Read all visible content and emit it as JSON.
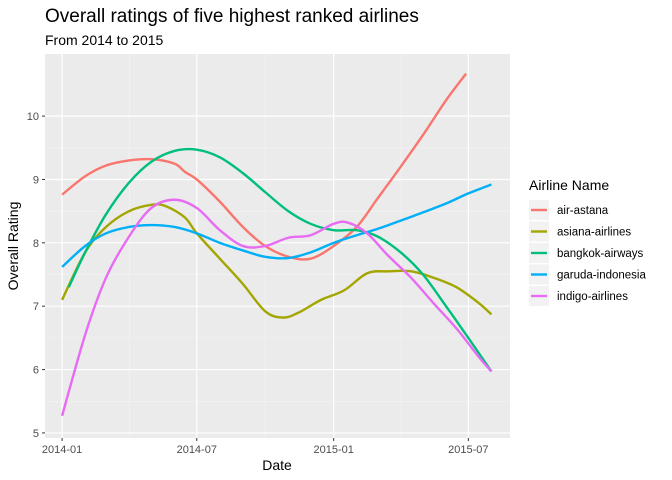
{
  "chart_data": {
    "type": "line",
    "title": "Overall ratings of five highest ranked airlines",
    "subtitle": "From 2014 to 2015",
    "xlabel": "Date",
    "ylabel": "Overall Rating",
    "x_ticks": [
      "2014-01",
      "2014-07",
      "2015-01",
      "2015-07"
    ],
    "y_ticks": [
      5,
      6,
      7,
      8,
      9,
      10
    ],
    "xlim": [
      "2013-12-09",
      "2015-08-26"
    ],
    "ylim": [
      4.92,
      10.98
    ],
    "grid": true,
    "legend_position": "right",
    "legend_title": "Airline Name",
    "series": [
      {
        "name": "air-astana",
        "color": "#F8766D",
        "x": [
          "2014-01-01",
          "2014-02-01",
          "2014-03-01",
          "2014-04-01",
          "2014-05-01",
          "2014-06-01",
          "2014-06-15",
          "2014-07-01",
          "2014-08-01",
          "2014-09-01",
          "2014-10-01",
          "2014-11-01",
          "2014-12-01",
          "2015-01-01",
          "2015-02-01",
          "2015-03-01",
          "2015-04-01",
          "2015-05-01",
          "2015-06-01",
          "2015-06-28"
        ],
        "y": [
          8.76,
          9.05,
          9.22,
          9.3,
          9.32,
          9.25,
          9.12,
          9.0,
          8.65,
          8.25,
          7.95,
          7.78,
          7.75,
          7.95,
          8.25,
          8.7,
          9.2,
          9.7,
          10.25,
          10.67
        ]
      },
      {
        "name": "asiana-airlines",
        "color": "#A3A500",
        "x": [
          "2014-01-01",
          "2014-02-01",
          "2014-03-01",
          "2014-04-01",
          "2014-05-01",
          "2014-05-20",
          "2014-06-15",
          "2014-07-01",
          "2014-08-01",
          "2014-09-01",
          "2014-10-01",
          "2014-10-25",
          "2014-11-15",
          "2014-12-15",
          "2015-01-15",
          "2015-02-15",
          "2015-03-15",
          "2015-04-15",
          "2015-05-15",
          "2015-06-15",
          "2015-07-15",
          "2015-08-01"
        ],
        "y": [
          7.1,
          7.85,
          8.25,
          8.5,
          8.6,
          8.58,
          8.4,
          8.15,
          7.75,
          7.35,
          6.92,
          6.82,
          6.9,
          7.1,
          7.25,
          7.52,
          7.55,
          7.55,
          7.45,
          7.3,
          7.05,
          6.87
        ]
      },
      {
        "name": "bangkok-airways",
        "color": "#00BF7D",
        "x": [
          "2014-01-10",
          "2014-02-01",
          "2014-03-01",
          "2014-04-01",
          "2014-05-01",
          "2014-06-01",
          "2014-07-01",
          "2014-08-01",
          "2014-09-01",
          "2014-10-01",
          "2014-11-01",
          "2014-12-01",
          "2015-01-01",
          "2015-02-01",
          "2015-03-01",
          "2015-04-01",
          "2015-05-01",
          "2015-06-01",
          "2015-07-01",
          "2015-08-01"
        ],
        "y": [
          7.3,
          7.85,
          8.45,
          8.95,
          9.28,
          9.45,
          9.47,
          9.35,
          9.1,
          8.8,
          8.5,
          8.3,
          8.2,
          8.2,
          8.1,
          7.85,
          7.5,
          7.0,
          6.5,
          5.97
        ]
      },
      {
        "name": "garuda-indonesia",
        "color": "#00B0F6",
        "x": [
          "2014-01-01",
          "2014-02-01",
          "2014-03-01",
          "2014-04-01",
          "2014-05-01",
          "2014-06-01",
          "2014-07-01",
          "2014-08-01",
          "2014-09-01",
          "2014-10-01",
          "2014-11-01",
          "2014-12-01",
          "2015-01-01",
          "2015-02-01",
          "2015-03-01",
          "2015-04-01",
          "2015-05-01",
          "2015-06-01",
          "2015-07-01",
          "2015-08-01"
        ],
        "y": [
          7.62,
          7.95,
          8.15,
          8.25,
          8.28,
          8.25,
          8.15,
          8.0,
          7.88,
          7.78,
          7.76,
          7.85,
          8.0,
          8.12,
          8.22,
          8.35,
          8.48,
          8.62,
          8.78,
          8.92
        ]
      },
      {
        "name": "indigo-airlines",
        "color": "#E76BF3",
        "x": [
          "2014-01-01",
          "2014-02-01",
          "2014-03-01",
          "2014-04-01",
          "2014-05-01",
          "2014-06-01",
          "2014-07-01",
          "2014-08-01",
          "2014-09-01",
          "2014-10-01",
          "2014-11-01",
          "2014-12-01",
          "2015-01-01",
          "2015-01-20",
          "2015-02-15",
          "2015-03-15",
          "2015-04-15",
          "2015-05-15",
          "2015-06-15",
          "2015-07-15",
          "2015-08-01"
        ],
        "y": [
          5.27,
          6.55,
          7.45,
          8.1,
          8.55,
          8.68,
          8.55,
          8.2,
          7.95,
          7.95,
          8.08,
          8.12,
          8.3,
          8.32,
          8.15,
          7.8,
          7.45,
          7.05,
          6.65,
          6.2,
          5.97
        ]
      }
    ]
  }
}
